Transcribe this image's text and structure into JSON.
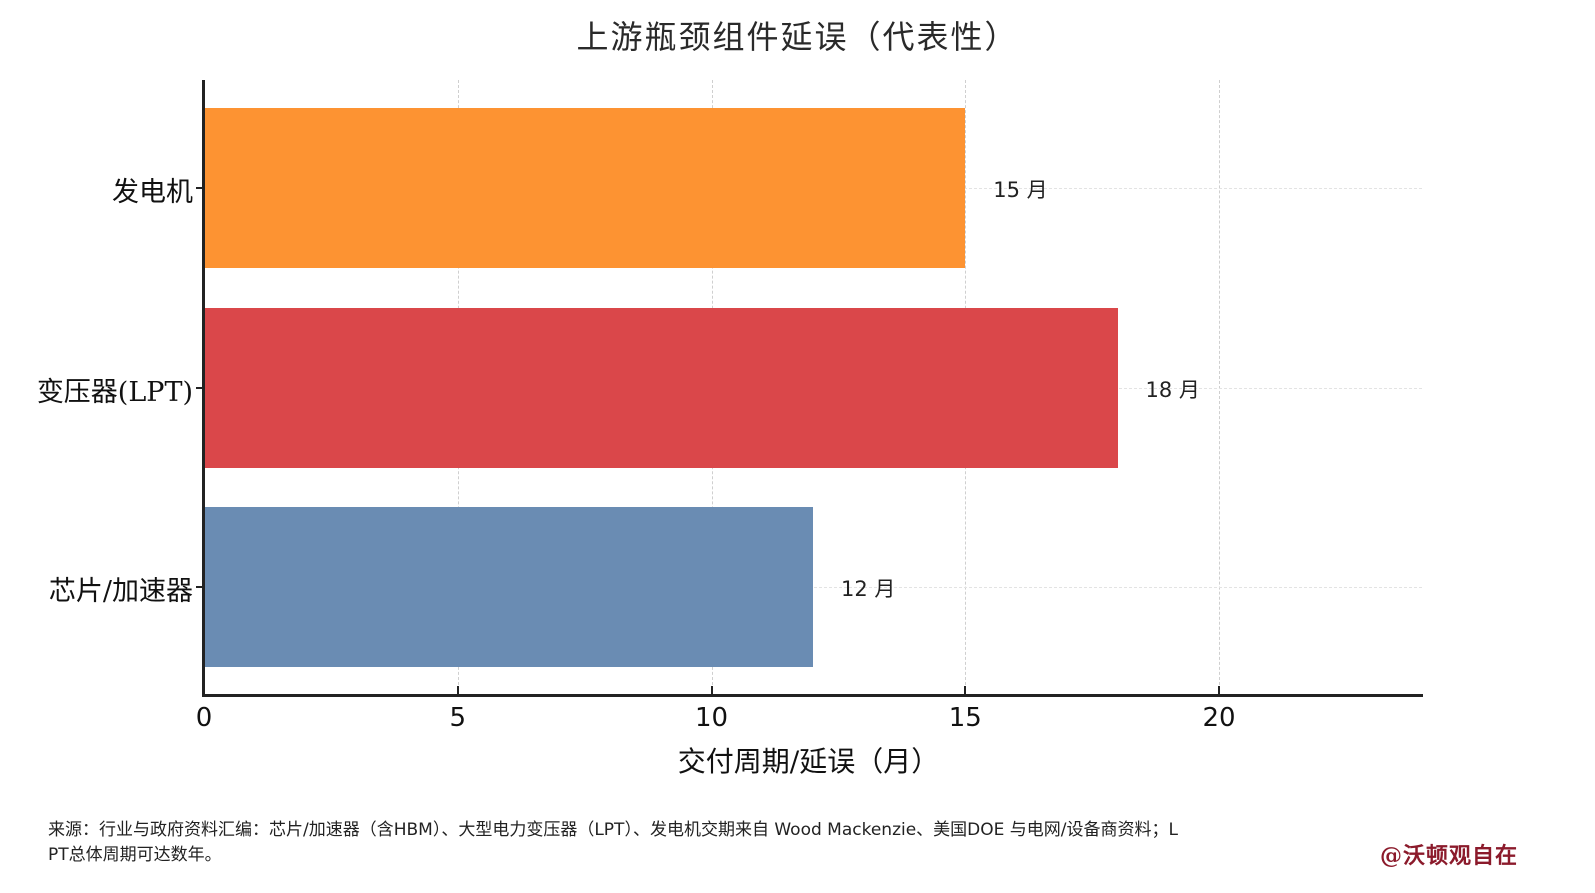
{
  "title": "上游瓶颈组件延误（代表性）",
  "chart_data": {
    "type": "bar",
    "orientation": "horizontal",
    "title": "上游瓶颈组件延误（代表性）",
    "xlabel": "交付周期/延误（月）",
    "ylabel": "",
    "categories": [
      "发电机",
      "变压器(LPT)",
      "芯片/加速器"
    ],
    "values": [
      15,
      18,
      12
    ],
    "value_labels": [
      "15 月",
      "18 月",
      "12 月"
    ],
    "colors": [
      "#fd9332",
      "#da474a",
      "#6a8cb3"
    ],
    "xlim": [
      0,
      24
    ],
    "xticks": [
      0,
      5,
      10,
      15,
      20
    ],
    "xtick_labels": [
      "0",
      "5",
      "10",
      "15",
      "20"
    ],
    "grid": true,
    "legend": null
  },
  "footer": {
    "source_text": "来源：行业与政府资料汇编：芯片/加速器（含HBM）、大型电力变压器（LPT）、发电机交期来自 Wood Mackenzie、美国DOE 与电网/设备商资料；LPT总体周期可达数年。",
    "watermark": "@沃顿观自在"
  }
}
